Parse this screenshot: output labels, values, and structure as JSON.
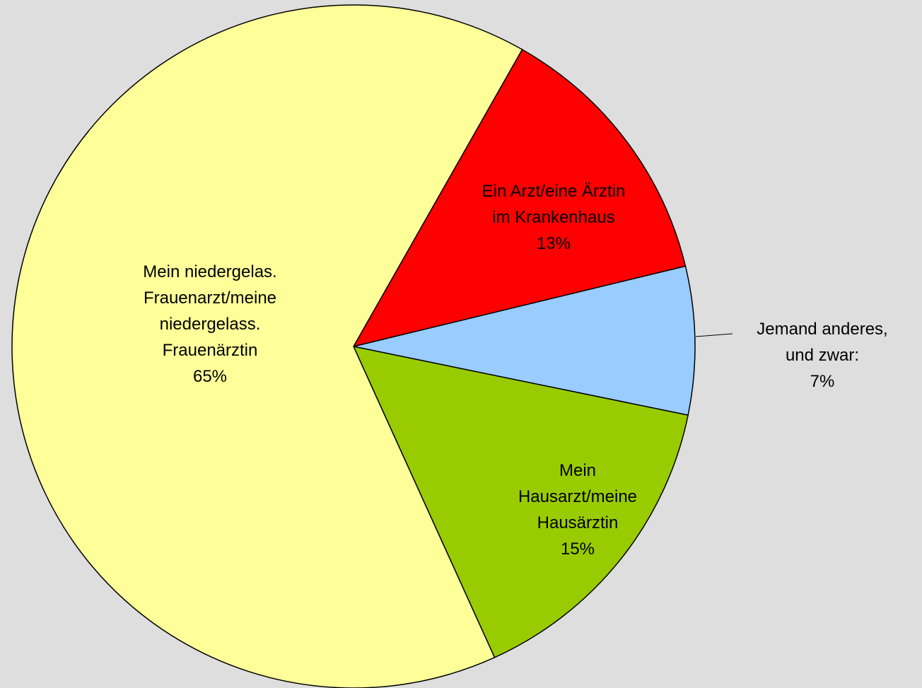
{
  "chart_data": {
    "type": "pie",
    "categories": [
      "Ein Arzt/eine Ärztin\nim Krankenhaus",
      "Jemand anderes,\nund zwar:",
      "Mein\nHausarzt/meine\nHausärztin",
      "Mein niedergelas.\nFrauenarzt/meine\nniedergelass.\nFrauenärztin"
    ],
    "values": [
      13,
      7,
      15,
      65
    ],
    "value_labels": [
      "13%",
      "7%",
      "15%",
      "65%"
    ],
    "colors": [
      "#ff0000",
      "#99ccff",
      "#99cc00",
      "#ffff99"
    ]
  }
}
